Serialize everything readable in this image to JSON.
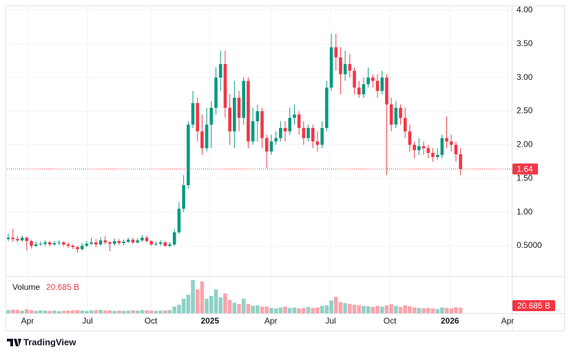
{
  "chart_data": {
    "type": "candlestick",
    "open": [
      0.6,
      0.62,
      0.6,
      0.58,
      0.62,
      0.57,
      0.5,
      0.52,
      0.53,
      0.55,
      0.52,
      0.54,
      0.55,
      0.52,
      0.5,
      0.48,
      0.45,
      0.5,
      0.53,
      0.55,
      0.52,
      0.58,
      0.55,
      0.53,
      0.57,
      0.54,
      0.56,
      0.59,
      0.55,
      0.58,
      0.62,
      0.57,
      0.52,
      0.53,
      0.55,
      0.5,
      0.52,
      0.7,
      1.05,
      1.4,
      2.3,
      2.62,
      2.2,
      1.95,
      2.3,
      2.55,
      3.0,
      3.2,
      2.55,
      2.2,
      2.7,
      2.4,
      2.95,
      2.05,
      2.35,
      2.5,
      2.1,
      1.9,
      2.05,
      2.1,
      2.25,
      2.2,
      2.4,
      2.45,
      2.25,
      2.1,
      2.25,
      2.05,
      2.0,
      2.25,
      2.85,
      3.45,
      3.3,
      3.05,
      3.2,
      3.1,
      2.85,
      2.75,
      2.9,
      3.0,
      2.95,
      2.8,
      3.0,
      2.6,
      2.3,
      2.55,
      2.4,
      2.2,
      2.0,
      1.92,
      1.98,
      1.95,
      1.88,
      1.82,
      1.85,
      2.1,
      2.05,
      2.0,
      1.86
    ],
    "high": [
      0.68,
      0.75,
      0.64,
      0.65,
      0.64,
      0.59,
      0.56,
      0.56,
      0.58,
      0.57,
      0.57,
      0.58,
      0.57,
      0.55,
      0.52,
      0.5,
      0.54,
      0.57,
      0.62,
      0.6,
      0.63,
      0.64,
      0.57,
      0.61,
      0.6,
      0.59,
      0.62,
      0.62,
      0.61,
      0.66,
      0.65,
      0.58,
      0.56,
      0.58,
      0.57,
      0.55,
      0.75,
      1.15,
      1.55,
      2.35,
      2.8,
      2.7,
      2.45,
      2.55,
      2.65,
      3.15,
      3.4,
      3.4,
      2.75,
      2.95,
      2.8,
      3.0,
      3.0,
      2.55,
      2.6,
      2.55,
      2.15,
      2.15,
      2.2,
      2.35,
      2.35,
      2.55,
      2.6,
      2.5,
      2.35,
      2.3,
      2.3,
      2.2,
      2.35,
      2.95,
      3.65,
      3.65,
      3.45,
      3.4,
      3.35,
      3.15,
      2.95,
      3.0,
      3.15,
      3.05,
      3.05,
      3.1,
      3.05,
      2.7,
      2.65,
      2.6,
      2.55,
      2.3,
      2.05,
      2.1,
      2.05,
      2.0,
      1.95,
      1.95,
      2.15,
      2.42,
      2.15,
      2.05,
      1.95
    ],
    "low": [
      0.57,
      0.56,
      0.55,
      0.56,
      0.43,
      0.46,
      0.48,
      0.5,
      0.5,
      0.49,
      0.5,
      0.51,
      0.49,
      0.47,
      0.45,
      0.4,
      0.43,
      0.48,
      0.51,
      0.48,
      0.5,
      0.52,
      0.42,
      0.5,
      0.51,
      0.51,
      0.54,
      0.53,
      0.53,
      0.56,
      0.55,
      0.5,
      0.5,
      0.5,
      0.48,
      0.48,
      0.5,
      0.68,
      1.0,
      1.35,
      2.25,
      2.05,
      1.85,
      1.9,
      1.95,
      2.45,
      2.8,
      2.4,
      2.0,
      1.95,
      2.2,
      2.3,
      1.95,
      2.0,
      2.05,
      1.95,
      1.65,
      1.85,
      2.0,
      2.05,
      2.05,
      2.15,
      2.3,
      2.15,
      2.0,
      2.05,
      1.95,
      1.9,
      1.95,
      2.2,
      2.8,
      3.1,
      2.75,
      2.95,
      3.0,
      2.75,
      2.7,
      2.7,
      2.85,
      2.85,
      2.7,
      2.75,
      1.55,
      2.2,
      2.25,
      2.3,
      2.1,
      1.9,
      1.8,
      1.85,
      1.85,
      1.8,
      1.75,
      1.78,
      1.8,
      1.95,
      1.9,
      1.75,
      1.55
    ],
    "close": [
      0.62,
      0.6,
      0.58,
      0.62,
      0.57,
      0.5,
      0.52,
      0.53,
      0.55,
      0.52,
      0.54,
      0.55,
      0.52,
      0.5,
      0.48,
      0.45,
      0.5,
      0.53,
      0.55,
      0.52,
      0.58,
      0.55,
      0.53,
      0.57,
      0.54,
      0.56,
      0.59,
      0.55,
      0.58,
      0.62,
      0.57,
      0.52,
      0.53,
      0.55,
      0.5,
      0.52,
      0.7,
      1.05,
      1.4,
      2.3,
      2.62,
      2.2,
      1.95,
      2.3,
      2.55,
      3.0,
      3.2,
      2.55,
      2.2,
      2.7,
      2.4,
      2.95,
      2.05,
      2.35,
      2.5,
      2.1,
      1.9,
      2.05,
      2.1,
      2.25,
      2.2,
      2.4,
      2.45,
      2.25,
      2.1,
      2.25,
      2.05,
      2.0,
      2.25,
      2.85,
      3.45,
      3.3,
      3.05,
      3.2,
      3.1,
      2.85,
      2.75,
      2.9,
      3.0,
      2.95,
      2.8,
      3.0,
      2.6,
      2.3,
      2.55,
      2.4,
      2.2,
      2.0,
      1.92,
      1.98,
      1.95,
      1.88,
      1.82,
      1.85,
      2.1,
      2.05,
      2.0,
      1.86,
      1.64
    ],
    "last_close_label": "1.64",
    "up_color": "#089981",
    "down_color": "#f23645",
    "ylim": [
      0.06,
      4.07
    ],
    "yticks": [
      {
        "value": 4,
        "label": "4.00"
      },
      {
        "value": 3.5,
        "label": "3.50"
      },
      {
        "value": 3,
        "label": "3.00"
      },
      {
        "value": 2.5,
        "label": "2.50"
      },
      {
        "value": 2,
        "label": "2.00"
      },
      {
        "value": 1.5,
        "label": "1.50"
      },
      {
        "value": 1,
        "label": "1.00"
      },
      {
        "value": 0.5,
        "label": "0.5000"
      }
    ],
    "xlim": [
      -0.3,
      109.1
    ],
    "xticks": [
      {
        "value": 4.18,
        "label": "Apr"
      },
      {
        "value": 17.16,
        "label": "Jul"
      },
      {
        "value": 30.9,
        "label": "Oct"
      },
      {
        "value": 43.7,
        "label": "2025"
      },
      {
        "value": 56.9,
        "label": "Apr"
      },
      {
        "value": 69.85,
        "label": "Jul"
      },
      {
        "value": 82.7,
        "label": "Oct"
      },
      {
        "value": 95.7,
        "label": "2026"
      },
      {
        "value": 108.2,
        "label": "Apr"
      }
    ],
    "grid": true,
    "volume": {
      "name": "Volume",
      "last_label": "20.685 B",
      "ylim": [
        0,
        130
      ],
      "values": [
        12,
        14,
        13,
        10,
        15,
        12,
        9,
        11,
        10,
        9,
        10,
        8,
        9,
        10,
        11,
        12,
        10,
        9,
        11,
        12,
        13,
        10,
        11,
        9,
        10,
        9,
        10,
        11,
        10,
        12,
        11,
        10,
        9,
        10,
        11,
        12,
        25,
        32,
        55,
        70,
        125,
        90,
        120,
        55,
        65,
        90,
        60,
        75,
        50,
        40,
        35,
        55,
        35,
        28,
        30,
        25,
        25,
        20,
        18,
        22,
        25,
        20,
        22,
        18,
        20,
        24,
        20,
        22,
        28,
        30,
        48,
        62,
        42,
        38,
        35,
        32,
        30,
        28,
        26,
        24,
        28,
        25,
        30,
        34,
        28,
        24,
        30,
        26,
        22,
        20,
        18,
        20,
        18,
        16,
        22,
        20,
        18,
        22,
        20.685
      ]
    }
  },
  "branding": "TradingView"
}
